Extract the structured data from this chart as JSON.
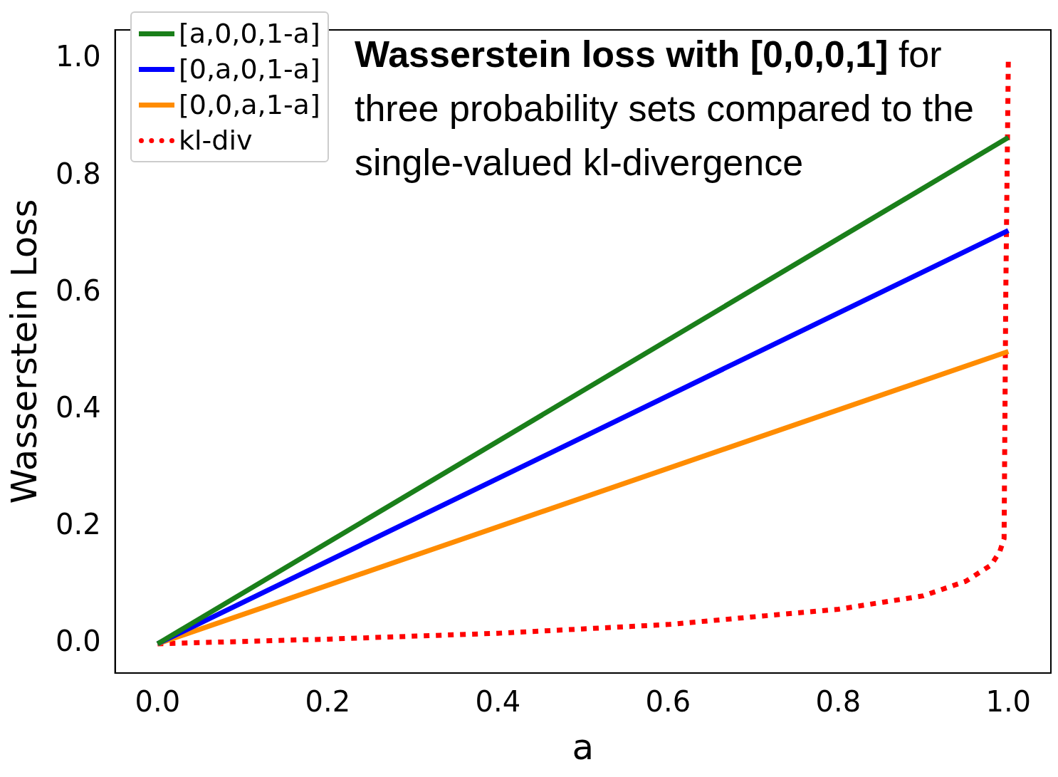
{
  "chart_data": {
    "type": "line",
    "xlabel": "a",
    "ylabel": "Wasserstein Loss",
    "annotations": [
      "Wasserstein loss with [0,0,0,1]",
      "for three probability sets compared to the single-valued kl-divergence"
    ],
    "xlim": [
      -0.05,
      1.05
    ],
    "ylim": [
      -0.05,
      1.05
    ],
    "xticks": [
      {
        "value": 0,
        "label": "0.0"
      },
      {
        "value": 0.2,
        "label": "0.2"
      },
      {
        "value": 0.4,
        "label": "0.4"
      },
      {
        "value": 0.6,
        "label": "0.6"
      },
      {
        "value": 0.8,
        "label": "0.8"
      },
      {
        "value": 1,
        "label": "1.0"
      }
    ],
    "yticks": [
      {
        "value": 0,
        "label": "0.0"
      },
      0.2,
      0.4,
      0.6,
      0.8,
      {
        "value": 1,
        "label": "1.0"
      }
    ],
    "grid": false,
    "legend": "top left",
    "marker": "none",
    "series": [
      {
        "name": "[a,0,0,1-a]",
        "color": "#1a7f1a",
        "x": [
          0,
          1
        ],
        "values": [
          0,
          0.866
        ],
        "line_style": "solid"
      },
      {
        "name": "[0,a,0,1-a]",
        "color": "#0000ff",
        "x": [
          0,
          1
        ],
        "values": [
          0,
          0.707
        ],
        "line_style": "solid"
      },
      {
        "name": "[0,0,a,1-a]",
        "color": "#ff8c00",
        "x": [
          0,
          1
        ],
        "values": [
          0,
          0.5
        ],
        "line_style": "solid"
      },
      {
        "name": "kl-div",
        "color": "#ff0000",
        "x": [
          0,
          0.2,
          0.4,
          0.6,
          0.8,
          0.9,
          0.95,
          0.98,
          0.99,
          0.995,
          0.997,
          1
        ],
        "values": [
          0,
          0.008,
          0.018,
          0.033,
          0.059,
          0.082,
          0.107,
          0.135,
          0.158,
          0.18,
          0.6,
          1
        ],
        "line_style": "dotted"
      }
    ]
  }
}
